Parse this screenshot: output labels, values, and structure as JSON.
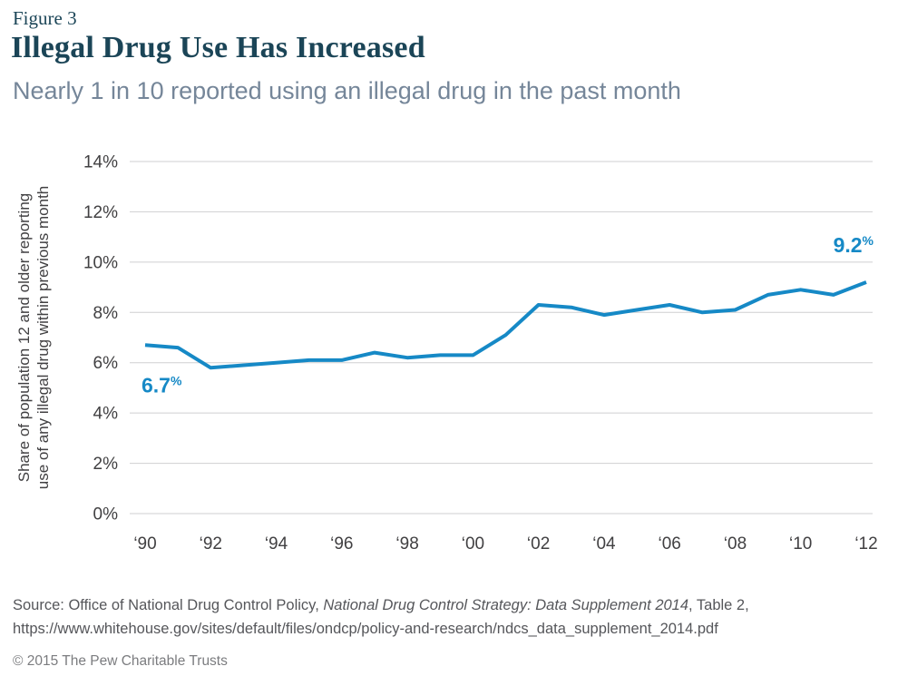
{
  "header": {
    "figure_label": "Figure 3",
    "title": "Illegal Drug Use Has Increased",
    "subtitle": "Nearly 1 in 10 reported using an illegal drug in the past month"
  },
  "chart_data": {
    "type": "line",
    "title": "Illegal Drug Use Has Increased",
    "xlabel": "",
    "ylabel": "Share of population 12 and older reporting use of any illegal drug within previous month",
    "ylabel_lines": [
      "Share of population 12 and older reporting",
      "use of any illegal drug within previous month"
    ],
    "x": [
      1990,
      1991,
      1992,
      1993,
      1994,
      1995,
      1996,
      1997,
      1998,
      1999,
      2000,
      2001,
      2002,
      2003,
      2004,
      2005,
      2006,
      2007,
      2008,
      2009,
      2010,
      2011,
      2012
    ],
    "values": [
      6.7,
      6.6,
      5.8,
      5.9,
      6.0,
      6.1,
      6.1,
      6.4,
      6.2,
      6.3,
      6.3,
      7.1,
      8.3,
      8.2,
      7.9,
      8.1,
      8.3,
      8.0,
      8.1,
      8.7,
      8.9,
      8.7,
      9.2
    ],
    "x_tick_labels": [
      "‘90",
      "‘92",
      "‘94",
      "‘96",
      "‘98",
      "‘00",
      "‘02",
      "‘04",
      "‘06",
      "‘08",
      "‘10",
      "‘12"
    ],
    "y_ticks": [
      0,
      2,
      4,
      6,
      8,
      10,
      12,
      14
    ],
    "y_tick_suffix": "%",
    "ylim": [
      0,
      14
    ],
    "grid": true,
    "legend": "none",
    "annotations": [
      {
        "index": 0,
        "label": "6.7",
        "suffix": "%",
        "placement": "below"
      },
      {
        "index": 22,
        "label": "9.2",
        "suffix": "%",
        "placement": "above"
      }
    ],
    "colors": {
      "line": "#1689c6",
      "data_label": "#1689c6",
      "grid": "#cfcfd1",
      "axis_text": "#414042"
    }
  },
  "footer": {
    "source_prefix": "Source: Office of National Drug Control Policy, ",
    "source_italic": "National Drug Control Strategy: Data Supplement 2014",
    "source_suffix": ", Table 2, https://www.whitehouse.gov/sites/default/files/ondcp/policy-and-research/ndcs_data_supplement_2014.pdf",
    "copyright": "© 2015 The Pew Charitable Trusts"
  }
}
